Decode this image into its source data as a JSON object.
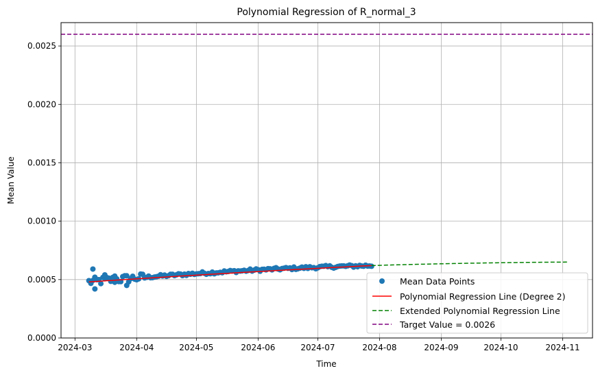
{
  "chart_data": {
    "type": "scatter",
    "title": "Polynomial Regression of R_normal_3",
    "xlabel": "Time",
    "ylabel": "Mean Value",
    "x_range": [
      "2024-02-23",
      "2024-11-16"
    ],
    "y_range": [
      0,
      0.0027
    ],
    "x_tick_labels": [
      "2024-03",
      "2024-04",
      "2024-05",
      "2024-06",
      "2024-07",
      "2024-08",
      "2024-09",
      "2024-10",
      "2024-11"
    ],
    "x_tick_dates": [
      "2024-03-01",
      "2024-04-01",
      "2024-05-01",
      "2024-06-01",
      "2024-07-01",
      "2024-08-01",
      "2024-09-01",
      "2024-10-01",
      "2024-11-01"
    ],
    "y_tick_labels": [
      "0.0000",
      "0.0005",
      "0.0010",
      "0.0015",
      "0.0020",
      "0.0025"
    ],
    "y_tick_values": [
      0,
      0.0005,
      0.001,
      0.0015,
      0.002,
      0.0025
    ],
    "grid": true,
    "legend_position": "bottom-right",
    "series": [
      {
        "name": "Mean Data Points",
        "kind": "scatter",
        "color": "#1f77b4",
        "x_start": "2024-03-08",
        "x_end": "2024-07-28",
        "fit_start": 0.00048,
        "fit_end": 0.00062,
        "noise_early": 4e-05,
        "noise_late": 1.2e-05,
        "outliers": [
          {
            "x": "2024-03-10",
            "y": 0.00059
          },
          {
            "x": "2024-03-11",
            "y": 0.00042
          },
          {
            "x": "2024-03-16",
            "y": 0.00054
          },
          {
            "x": "2024-03-21",
            "y": 0.00053
          },
          {
            "x": "2024-03-27",
            "y": 0.00045
          }
        ]
      },
      {
        "name": "Polynomial Regression Line (Degree 2)",
        "kind": "line",
        "color": "#ff0000",
        "style": "solid",
        "x": [
          "2024-03-08",
          "2024-05-18",
          "2024-07-28"
        ],
        "y": [
          0.00048,
          0.000555,
          0.00062
        ]
      },
      {
        "name": "Extended Polynomial Regression Line",
        "kind": "line",
        "color": "#008000",
        "style": "dashed",
        "x": [
          "2024-07-28",
          "2024-09-15",
          "2024-11-04"
        ],
        "y": [
          0.00062,
          0.00064,
          0.00065
        ]
      },
      {
        "name": "Target Value = 0.0026",
        "kind": "hline",
        "color": "#800080",
        "style": "dashed",
        "y": 0.0026
      }
    ]
  }
}
